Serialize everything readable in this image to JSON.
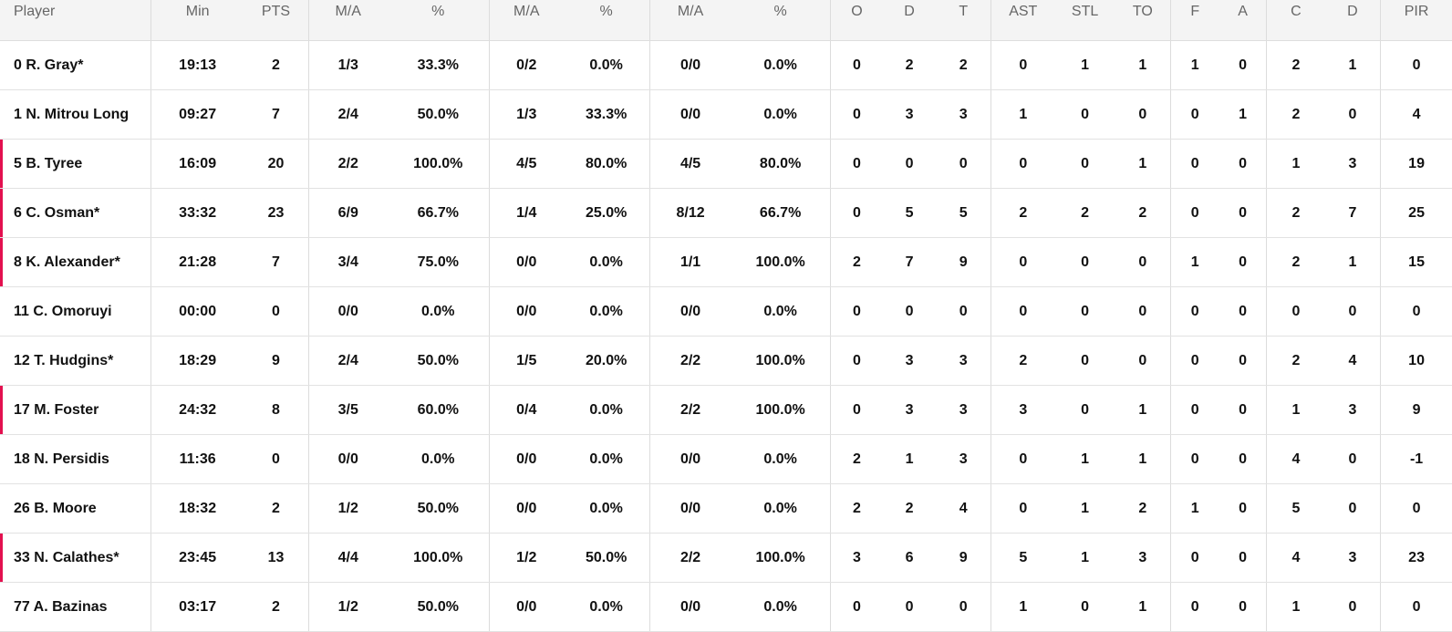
{
  "theme": {
    "onfloor_marker_color": "#e3104f",
    "header_bg": "#f4f4f4"
  },
  "headers": [
    "Player",
    "Min",
    "PTS",
    "M/A",
    "%",
    "M/A",
    "%",
    "M/A",
    "%",
    "O",
    "D",
    "T",
    "AST",
    "STL",
    "TO",
    "F",
    "A",
    "C",
    "D",
    "PIR"
  ],
  "rows": [
    {
      "on_floor": false,
      "cells": [
        "0 R. Gray*",
        "19:13",
        "2",
        "1/3",
        "33.3%",
        "0/2",
        "0.0%",
        "0/0",
        "0.0%",
        "0",
        "2",
        "2",
        "0",
        "1",
        "1",
        "1",
        "0",
        "2",
        "1",
        "0"
      ]
    },
    {
      "on_floor": false,
      "cells": [
        "1 N. Mitrou Long",
        "09:27",
        "7",
        "2/4",
        "50.0%",
        "1/3",
        "33.3%",
        "0/0",
        "0.0%",
        "0",
        "3",
        "3",
        "1",
        "0",
        "0",
        "0",
        "1",
        "2",
        "0",
        "4"
      ]
    },
    {
      "on_floor": true,
      "cells": [
        "5 B. Tyree",
        "16:09",
        "20",
        "2/2",
        "100.0%",
        "4/5",
        "80.0%",
        "4/5",
        "80.0%",
        "0",
        "0",
        "0",
        "0",
        "0",
        "1",
        "0",
        "0",
        "1",
        "3",
        "19"
      ]
    },
    {
      "on_floor": true,
      "cells": [
        "6 C. Osman*",
        "33:32",
        "23",
        "6/9",
        "66.7%",
        "1/4",
        "25.0%",
        "8/12",
        "66.7%",
        "0",
        "5",
        "5",
        "2",
        "2",
        "2",
        "0",
        "0",
        "2",
        "7",
        "25"
      ]
    },
    {
      "on_floor": true,
      "cells": [
        "8 K. Alexander*",
        "21:28",
        "7",
        "3/4",
        "75.0%",
        "0/0",
        "0.0%",
        "1/1",
        "100.0%",
        "2",
        "7",
        "9",
        "0",
        "0",
        "0",
        "1",
        "0",
        "2",
        "1",
        "15"
      ]
    },
    {
      "on_floor": false,
      "cells": [
        "11 C. Omoruyi",
        "00:00",
        "0",
        "0/0",
        "0.0%",
        "0/0",
        "0.0%",
        "0/0",
        "0.0%",
        "0",
        "0",
        "0",
        "0",
        "0",
        "0",
        "0",
        "0",
        "0",
        "0",
        "0"
      ]
    },
    {
      "on_floor": false,
      "cells": [
        "12 T. Hudgins*",
        "18:29",
        "9",
        "2/4",
        "50.0%",
        "1/5",
        "20.0%",
        "2/2",
        "100.0%",
        "0",
        "3",
        "3",
        "2",
        "0",
        "0",
        "0",
        "0",
        "2",
        "4",
        "10"
      ]
    },
    {
      "on_floor": true,
      "cells": [
        "17 M. Foster",
        "24:32",
        "8",
        "3/5",
        "60.0%",
        "0/4",
        "0.0%",
        "2/2",
        "100.0%",
        "0",
        "3",
        "3",
        "3",
        "0",
        "1",
        "0",
        "0",
        "1",
        "3",
        "9"
      ]
    },
    {
      "on_floor": false,
      "cells": [
        "18 N. Persidis",
        "11:36",
        "0",
        "0/0",
        "0.0%",
        "0/0",
        "0.0%",
        "0/0",
        "0.0%",
        "2",
        "1",
        "3",
        "0",
        "1",
        "1",
        "0",
        "0",
        "4",
        "0",
        "-1"
      ]
    },
    {
      "on_floor": false,
      "cells": [
        "26 B. Moore",
        "18:32",
        "2",
        "1/2",
        "50.0%",
        "0/0",
        "0.0%",
        "0/0",
        "0.0%",
        "2",
        "2",
        "4",
        "0",
        "1",
        "2",
        "1",
        "0",
        "5",
        "0",
        "0"
      ]
    },
    {
      "on_floor": true,
      "cells": [
        "33 N. Calathes*",
        "23:45",
        "13",
        "4/4",
        "100.0%",
        "1/2",
        "50.0%",
        "2/2",
        "100.0%",
        "3",
        "6",
        "9",
        "5",
        "1",
        "3",
        "0",
        "0",
        "4",
        "3",
        "23"
      ]
    },
    {
      "on_floor": false,
      "cells": [
        "77 A. Bazinas",
        "03:17",
        "2",
        "1/2",
        "50.0%",
        "0/0",
        "0.0%",
        "0/0",
        "0.0%",
        "0",
        "0",
        "0",
        "1",
        "0",
        "1",
        "0",
        "0",
        "1",
        "0",
        "0"
      ]
    }
  ]
}
